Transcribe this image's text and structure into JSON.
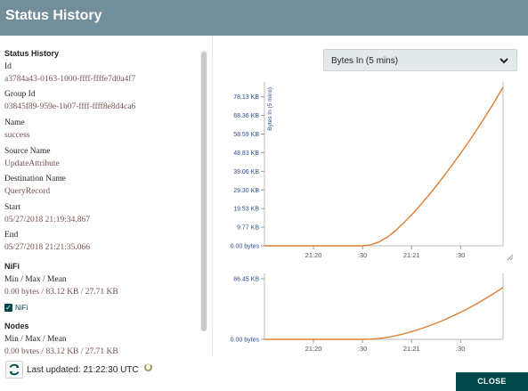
{
  "dialog": {
    "title": "Status History"
  },
  "details": {
    "section_title": "Status History",
    "fields": [
      {
        "label": "Id",
        "value": "a3784a43-0163-1000-ffff-ffffe7d0a4f7"
      },
      {
        "label": "Group Id",
        "value": "03845f89-959e-1b07-ffff-ffff8e8d4ca6"
      },
      {
        "label": "Name",
        "value": "success"
      },
      {
        "label": "Source Name",
        "value": "UpdateAttribute"
      },
      {
        "label": "Destination Name",
        "value": "QueryRecord"
      },
      {
        "label": "Start",
        "value": "05/27/2018 21:19:34.867"
      },
      {
        "label": "End",
        "value": "05/27/2018 21:21:35.066"
      }
    ],
    "nifi": {
      "title": "NiFi",
      "label": "Min / Max / Mean",
      "value": "0.00 bytes / 83.12 KB / 27.71 KB",
      "checkbox_label": "NiFi"
    },
    "nodes": {
      "title": "Nodes",
      "label": "Min / Max / Mean",
      "value": "0.00 bytes / 83.12 KB / 27.71 KB"
    }
  },
  "metric_select": {
    "selected": "Bytes In (5 mins)"
  },
  "footer": {
    "last_updated": "Last updated: 21:22:30 UTC",
    "close_label": "CLOSE"
  },
  "colors": {
    "header_bg": "#728e9b",
    "value_text": "#775351",
    "line": "#de7f35",
    "close_bg": "#004849",
    "axis_label": "#2f4e8f"
  },
  "icons": {
    "refresh": "refresh-icon",
    "chevron": "chevron-down-icon",
    "checkbox": "checkbox-checked-icon"
  },
  "chart_data": [
    {
      "type": "line",
      "ylabel": "Bytes In (5 mins)",
      "y_tick_labels": [
        "0.00 bytes",
        "9.77 KB",
        "19.53 KB",
        "29.30 KB",
        "39.06 KB",
        "48.83 KB",
        "58.59 KB",
        "68.36 KB",
        "78.13 KB"
      ],
      "y_ticks": [
        0,
        9.77,
        19.53,
        29.3,
        39.06,
        48.83,
        58.59,
        68.36,
        78.13
      ],
      "x_tick_labels": [
        "21:20",
        ":30",
        "21:21",
        ":30"
      ],
      "x_ticks": [
        30,
        60,
        90,
        120
      ],
      "xlim": [
        0,
        146
      ],
      "ylim": [
        0,
        83.12
      ],
      "grid": false,
      "series": [
        {
          "x": [
            0,
            10,
            20,
            30,
            40,
            50,
            60,
            65,
            70,
            75,
            80,
            85,
            90,
            95,
            100,
            105,
            110,
            115,
            120,
            125,
            130,
            135,
            140,
            146
          ],
          "values": [
            0,
            0,
            0,
            0,
            0,
            0,
            0,
            0.5,
            2.0,
            4.5,
            7.8,
            11.8,
            16.2,
            21.0,
            26.0,
            31.3,
            36.8,
            42.5,
            48.5,
            54.6,
            61.0,
            67.6,
            74.5,
            83.12
          ]
        }
      ]
    },
    {
      "type": "line",
      "y_tick_labels": [
        "0.00 bytes",
        "86.45 KB"
      ],
      "y_ticks": [
        0,
        86.45
      ],
      "x_tick_labels": [
        "21:20",
        ":30",
        "21:21",
        ":30"
      ],
      "x_ticks": [
        30,
        60,
        90,
        120
      ],
      "xlim": [
        0,
        146
      ],
      "ylim": [
        0,
        86.45
      ],
      "grid": false,
      "series": [
        {
          "x": [
            0,
            10,
            20,
            30,
            40,
            50,
            60,
            65,
            70,
            75,
            80,
            85,
            90,
            95,
            100,
            105,
            110,
            115,
            120,
            125,
            130,
            135,
            140,
            146
          ],
          "values": [
            0,
            0,
            0,
            0,
            0,
            0,
            0,
            0.3,
            1.2,
            2.8,
            5.0,
            7.8,
            11.0,
            14.6,
            18.6,
            23.0,
            27.8,
            33.0,
            38.6,
            44.6,
            51.0,
            57.8,
            65.0,
            74.0
          ]
        }
      ]
    }
  ]
}
